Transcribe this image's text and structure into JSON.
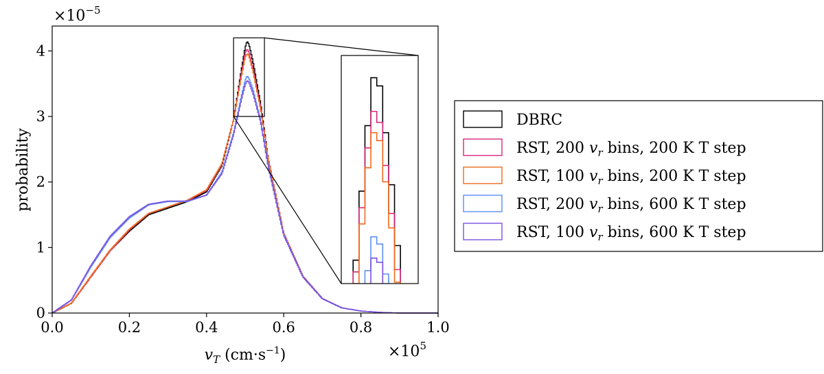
{
  "chart_data": {
    "type": "step-histogram",
    "title": "",
    "xlabel": "v_T (cm·s⁻¹)",
    "xlabel_main": "v",
    "xlabel_sub": "T",
    "xlabel_units": " (cm·s",
    "xlabel_units_exp": "−1",
    "xlabel_units_close": ")",
    "ylabel": "probability",
    "xlim": [
      0.0,
      1.0
    ],
    "ylim": [
      0,
      4.38
    ],
    "x_ticks": [
      0.0,
      0.2,
      0.4,
      0.6,
      0.8,
      1.0
    ],
    "x_tick_labels": [
      "0.0",
      "0.2",
      "0.4",
      "0.6",
      "0.8",
      "1.0"
    ],
    "y_ticks": [
      0,
      1,
      2,
      3,
      4
    ],
    "y_tick_labels": [
      "0",
      "1",
      "2",
      "3",
      "4"
    ],
    "x_scale_base": "×10",
    "x_scale_exp": "5",
    "y_scale_base": "×10",
    "y_scale_exp": "−5",
    "legend_position": "right",
    "series": [
      {
        "name": "DBRC",
        "color": "#000000",
        "x": [
          0.0,
          0.05,
          0.1,
          0.15,
          0.2,
          0.25,
          0.3,
          0.35,
          0.4,
          0.44,
          0.47,
          0.49,
          0.5,
          0.505,
          0.51,
          0.52,
          0.54,
          0.56,
          0.6,
          0.65,
          0.7,
          0.75,
          0.8,
          0.85,
          0.9,
          1.0
        ],
        "y": [
          0.0,
          0.15,
          0.55,
          0.95,
          1.25,
          1.5,
          1.6,
          1.7,
          1.85,
          2.25,
          2.95,
          3.7,
          4.05,
          4.15,
          4.1,
          3.85,
          3.2,
          2.35,
          1.2,
          0.55,
          0.22,
          0.08,
          0.03,
          0.01,
          0.0,
          0.0
        ]
      },
      {
        "name": "RST, 200 v_r bins, 200 K T step",
        "label_pre": "RST, 200 ",
        "label_var": "v",
        "label_sub": "r",
        "label_post": " bins, 200 K T step",
        "color": "#d6287a",
        "x": [
          0.0,
          0.05,
          0.1,
          0.15,
          0.2,
          0.25,
          0.3,
          0.35,
          0.4,
          0.44,
          0.47,
          0.49,
          0.5,
          0.505,
          0.51,
          0.52,
          0.54,
          0.56,
          0.6,
          0.65,
          0.7,
          0.75,
          0.8,
          0.85,
          0.9,
          1.0
        ],
        "y": [
          0.0,
          0.15,
          0.55,
          0.95,
          1.27,
          1.52,
          1.62,
          1.72,
          1.87,
          2.27,
          2.95,
          3.65,
          3.97,
          4.03,
          3.98,
          3.75,
          3.15,
          2.35,
          1.22,
          0.56,
          0.22,
          0.08,
          0.03,
          0.01,
          0.0,
          0.0
        ]
      },
      {
        "name": "RST, 100 v_r bins, 200 K T step",
        "label_pre": "RST, 100 ",
        "label_var": "v",
        "label_sub": "r",
        "label_post": " bins, 200 K T step",
        "color": "#ef6a1c",
        "x": [
          0.0,
          0.05,
          0.1,
          0.15,
          0.2,
          0.25,
          0.3,
          0.35,
          0.4,
          0.44,
          0.47,
          0.49,
          0.5,
          0.505,
          0.51,
          0.52,
          0.54,
          0.56,
          0.6,
          0.65,
          0.7,
          0.75,
          0.8,
          0.85,
          0.9,
          1.0
        ],
        "y": [
          0.0,
          0.15,
          0.56,
          0.96,
          1.28,
          1.52,
          1.62,
          1.72,
          1.88,
          2.28,
          2.95,
          3.6,
          3.9,
          3.96,
          3.92,
          3.7,
          3.12,
          2.34,
          1.22,
          0.56,
          0.22,
          0.08,
          0.03,
          0.01,
          0.0,
          0.0
        ]
      },
      {
        "name": "RST, 200 v_r bins, 600 K T step",
        "label_pre": "RST, 200 ",
        "label_var": "v",
        "label_sub": "r",
        "label_post": " bins, 600 K T step",
        "color": "#5b8ff2",
        "x": [
          0.0,
          0.05,
          0.1,
          0.15,
          0.2,
          0.25,
          0.3,
          0.35,
          0.4,
          0.44,
          0.47,
          0.49,
          0.5,
          0.505,
          0.51,
          0.52,
          0.54,
          0.56,
          0.6,
          0.65,
          0.7,
          0.75,
          0.8,
          0.85,
          0.9,
          1.0
        ],
        "y": [
          0.0,
          0.2,
          0.7,
          1.15,
          1.45,
          1.65,
          1.7,
          1.7,
          1.8,
          2.15,
          2.75,
          3.3,
          3.55,
          3.62,
          3.58,
          3.42,
          2.95,
          2.25,
          1.2,
          0.55,
          0.22,
          0.08,
          0.03,
          0.01,
          0.0,
          0.0
        ]
      },
      {
        "name": "RST, 100 v_r bins, 600 K T step",
        "label_pre": "RST, 100 ",
        "label_var": "v",
        "label_sub": "r",
        "label_post": " bins, 600 K T step",
        "color": "#7a4fe0",
        "x": [
          0.0,
          0.05,
          0.1,
          0.15,
          0.2,
          0.25,
          0.3,
          0.35,
          0.4,
          0.44,
          0.47,
          0.49,
          0.5,
          0.505,
          0.51,
          0.52,
          0.54,
          0.56,
          0.6,
          0.65,
          0.7,
          0.75,
          0.8,
          0.85,
          0.9,
          1.0
        ],
        "y": [
          0.0,
          0.2,
          0.72,
          1.17,
          1.47,
          1.66,
          1.71,
          1.71,
          1.8,
          2.13,
          2.72,
          3.25,
          3.48,
          3.55,
          3.52,
          3.36,
          2.92,
          2.23,
          1.19,
          0.55,
          0.22,
          0.08,
          0.03,
          0.01,
          0.0,
          0.0
        ]
      }
    ],
    "inset": {
      "source_xlim": [
        0.47,
        0.55
      ],
      "source_ylim": [
        3.0,
        4.2
      ],
      "xlim": [
        0.47,
        0.55
      ],
      "ylim": [
        3.45,
        4.2
      ]
    }
  }
}
